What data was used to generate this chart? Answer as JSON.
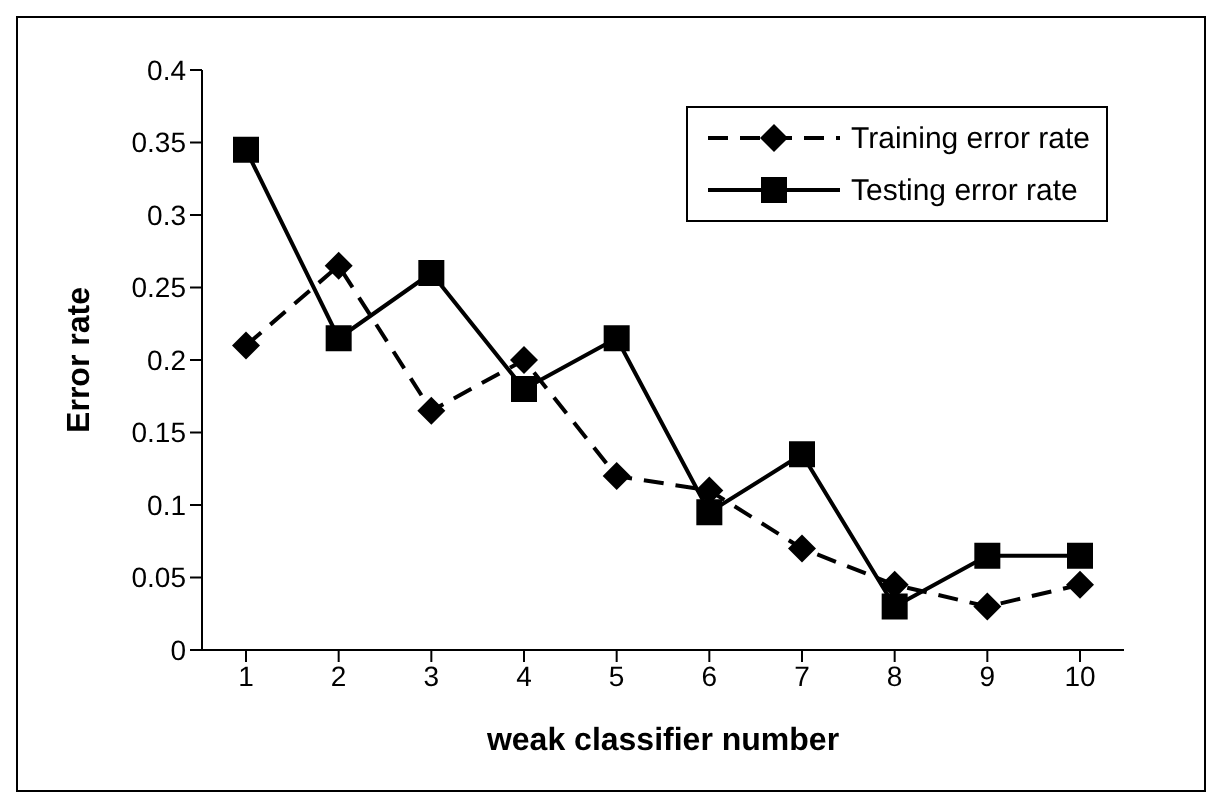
{
  "chart_data": {
    "type": "line",
    "xlabel": "weak classifier number",
    "ylabel": "Error rate",
    "categories": [
      "1",
      "2",
      "3",
      "4",
      "5",
      "6",
      "7",
      "8",
      "9",
      "10"
    ],
    "series": [
      {
        "name": "Training error rate",
        "color": "#000000",
        "marker": "diamond",
        "line_style": "dashed",
        "values": [
          0.21,
          0.265,
          0.165,
          0.2,
          0.12,
          0.11,
          0.07,
          0.045,
          0.03,
          0.045
        ]
      },
      {
        "name": "Testing error rate",
        "color": "#000000",
        "marker": "square",
        "line_style": "solid",
        "values": [
          0.345,
          0.215,
          0.26,
          0.18,
          0.215,
          0.095,
          0.135,
          0.03,
          0.065,
          0.065
        ]
      }
    ],
    "ylim": [
      0,
      0.4
    ],
    "yticks": [
      0,
      0.05,
      0.1,
      0.15,
      0.2,
      0.25,
      0.3,
      0.35,
      0.4
    ],
    "grid": false,
    "legend": "top right"
  }
}
